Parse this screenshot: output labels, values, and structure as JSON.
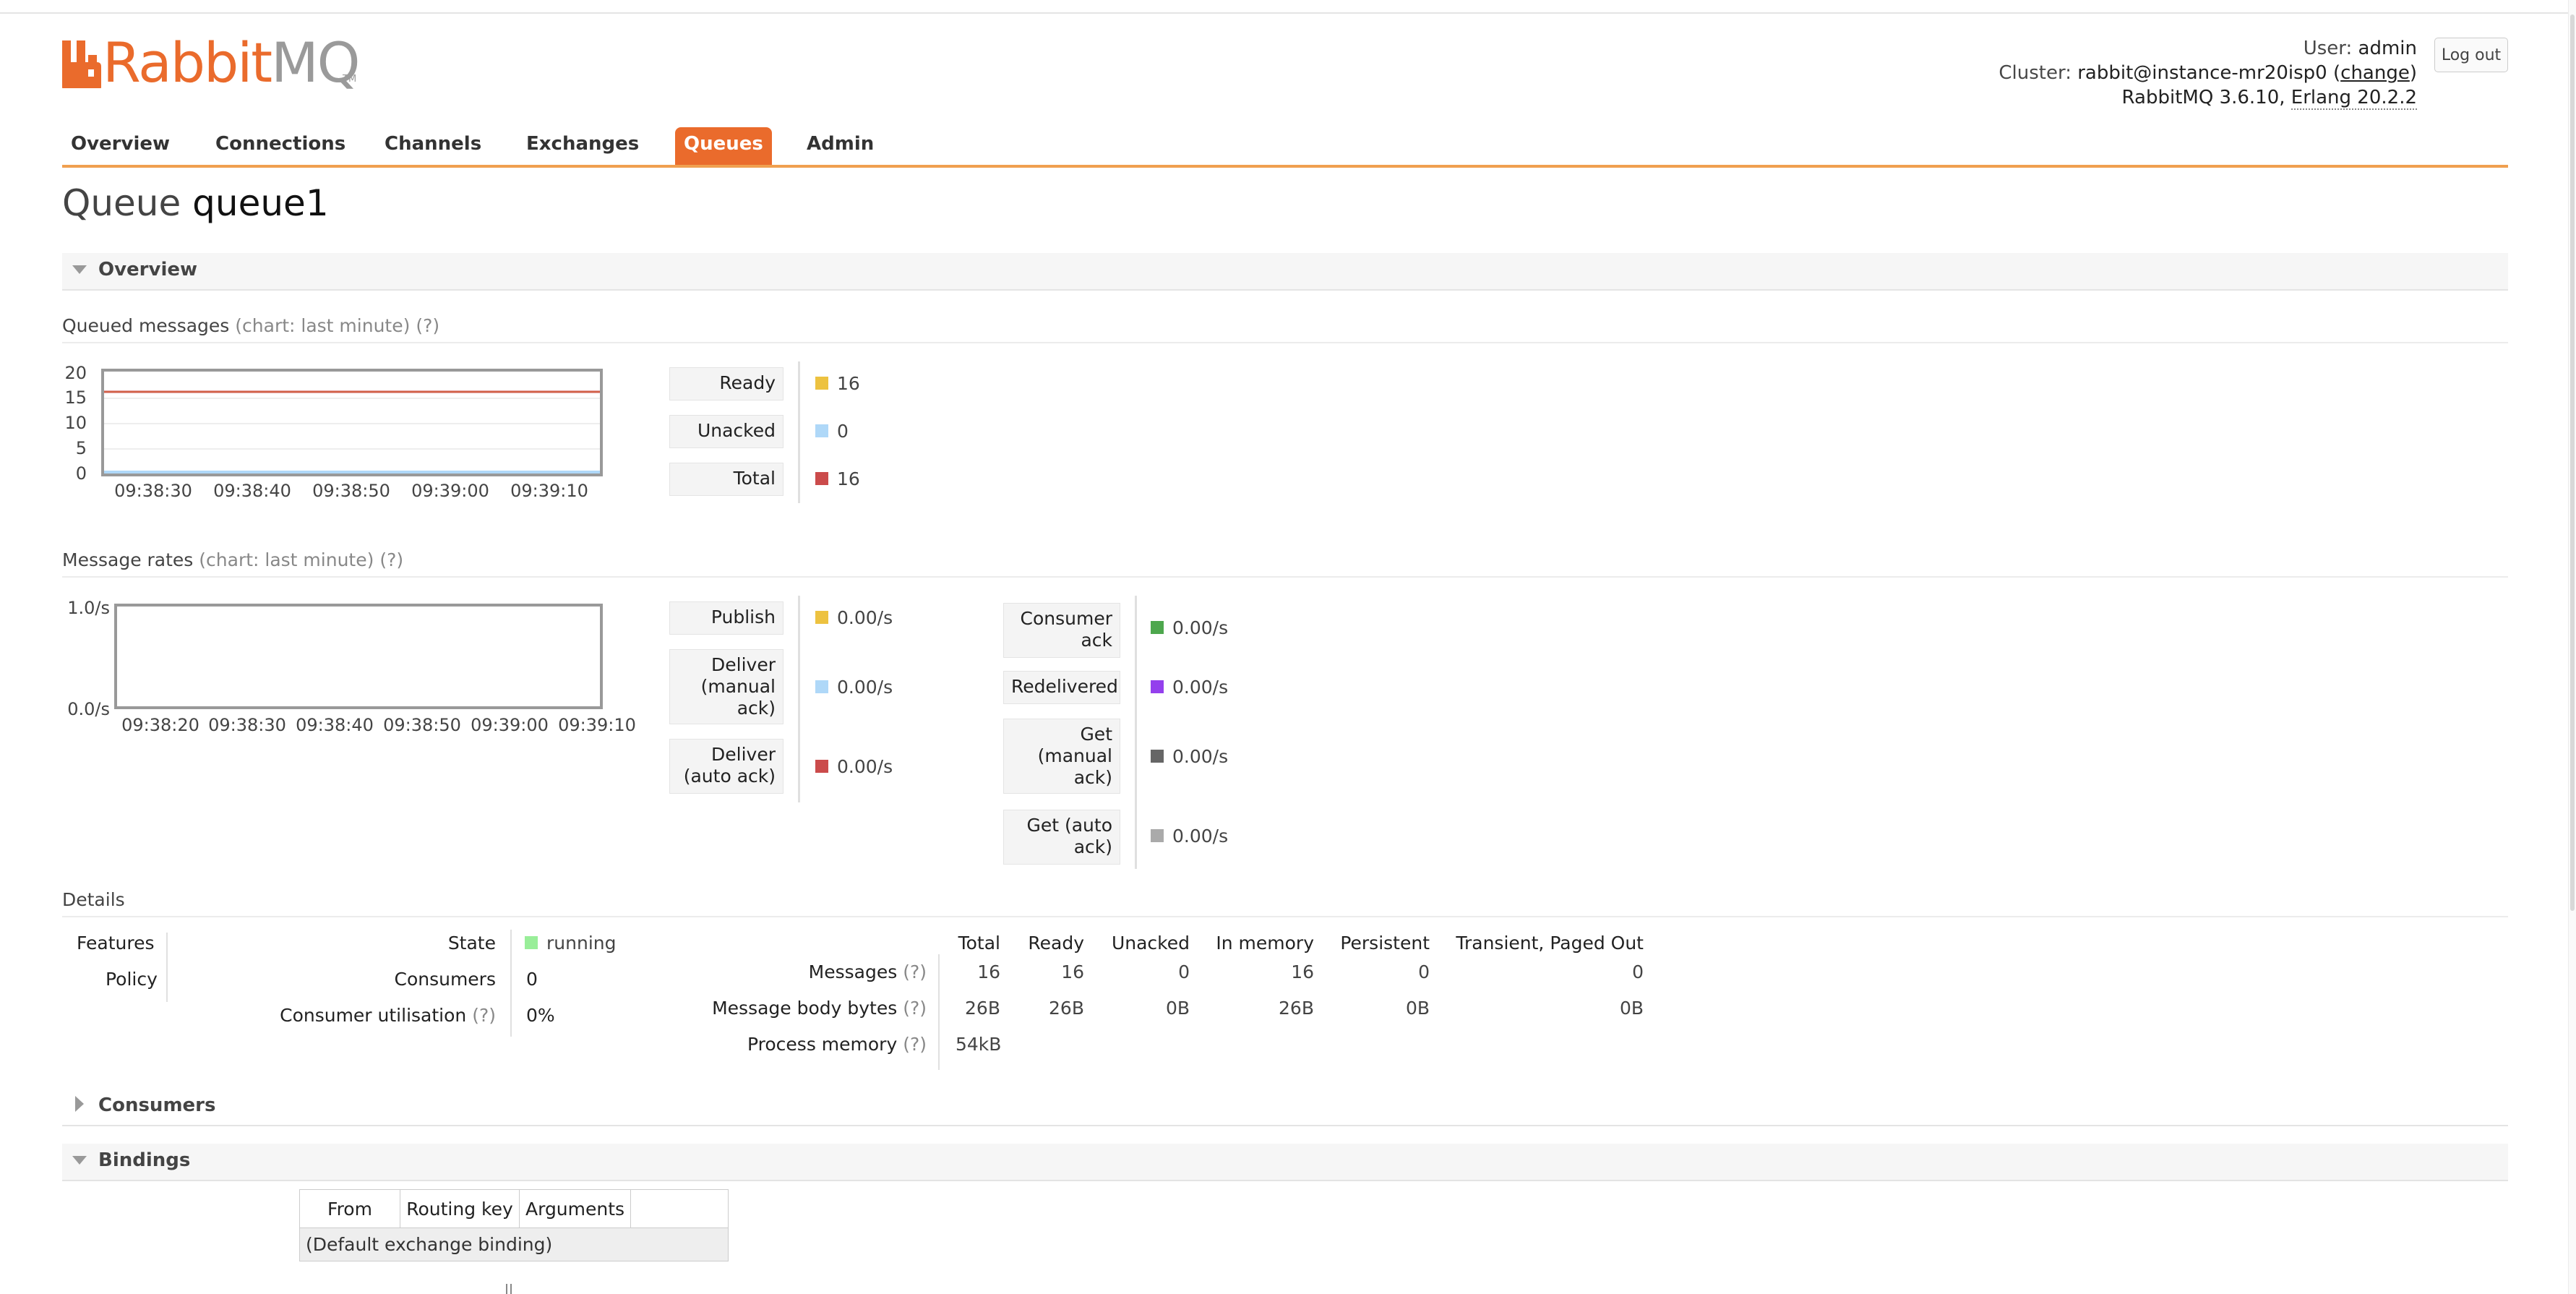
{
  "header": {
    "logo_rabbit": "Rabbit",
    "logo_mq": "MQ",
    "logo_tm": "TM",
    "user_label": "User:",
    "user_value": "admin",
    "cluster_label": "Cluster:",
    "cluster_value": "rabbit@instance-mr20isp0",
    "change_label": "change",
    "version_text": "RabbitMQ 3.6.10,",
    "erlang_text": "Erlang 20.2.2",
    "logout_label": "Log out"
  },
  "nav": {
    "items": [
      "Overview",
      "Connections",
      "Channels",
      "Exchanges",
      "Queues",
      "Admin"
    ],
    "active": "Queues"
  },
  "page": {
    "title_prefix": "Queue",
    "queue_name": "queue1"
  },
  "overview": {
    "section_label": "Overview",
    "queued_messages_title": "Queued messages",
    "chart_hint": "(chart: last minute)",
    "help_hint": "(?)",
    "queued_chart": {
      "y_ticks": [
        "20",
        "15",
        "10",
        "5",
        "0"
      ],
      "x_ticks": [
        "09:38:30",
        "09:38:40",
        "09:38:50",
        "09:39:00",
        "09:39:10"
      ]
    },
    "queued_legend": [
      {
        "label": "Ready",
        "value": "16",
        "color": "#edc240"
      },
      {
        "label": "Unacked",
        "value": "0",
        "color": "#afd8f8"
      },
      {
        "label": "Total",
        "value": "16",
        "color": "#cb4b4b"
      }
    ],
    "message_rates_title": "Message rates",
    "rates_chart": {
      "y_ticks": [
        "1.0/s",
        "0.0/s"
      ],
      "x_ticks": [
        "09:38:20",
        "09:38:30",
        "09:38:40",
        "09:38:50",
        "09:39:00",
        "09:39:10"
      ]
    },
    "rates_left": [
      {
        "label": "Publish",
        "value": "0.00/s",
        "color": "#edc240"
      },
      {
        "label": "Deliver (manual ack)",
        "value": "0.00/s",
        "color": "#afd8f8"
      },
      {
        "label": "Deliver (auto ack)",
        "value": "0.00/s",
        "color": "#cb4b4b"
      }
    ],
    "rates_right": [
      {
        "label": "Consumer ack",
        "value": "0.00/s",
        "color": "#4da74d"
      },
      {
        "label": "Redelivered",
        "value": "0.00/s",
        "color": "#9440ed"
      },
      {
        "label": "Get (manual ack)",
        "value": "0.00/s",
        "color": "#666666"
      },
      {
        "label": "Get (auto ack)",
        "value": "0.00/s",
        "color": "#aaaaaa"
      }
    ]
  },
  "details": {
    "title": "Details",
    "features_label": "Features",
    "policy_label": "Policy",
    "state_label": "State",
    "state_value": "running",
    "state_color": "#99ee99",
    "consumers_label": "Consumers",
    "consumers_value": "0",
    "utilisation_label": "Consumer utilisation",
    "utilisation_value": "0%",
    "columns": [
      "Total",
      "Ready",
      "Unacked",
      "In memory",
      "Persistent",
      "Transient, Paged Out"
    ],
    "messages_label": "Messages",
    "messages_values": [
      "16",
      "16",
      "0",
      "16",
      "0",
      "0"
    ],
    "body_bytes_label": "Message body bytes",
    "body_bytes_values": [
      "26B",
      "26B",
      "0B",
      "26B",
      "0B",
      "0B"
    ],
    "process_memory_label": "Process memory",
    "process_memory_value": "54kB"
  },
  "consumers_section": {
    "label": "Consumers"
  },
  "bindings_section": {
    "label": "Bindings",
    "columns": [
      "From",
      "Routing key",
      "Arguments"
    ],
    "row_text": "(Default exchange binding)"
  }
}
